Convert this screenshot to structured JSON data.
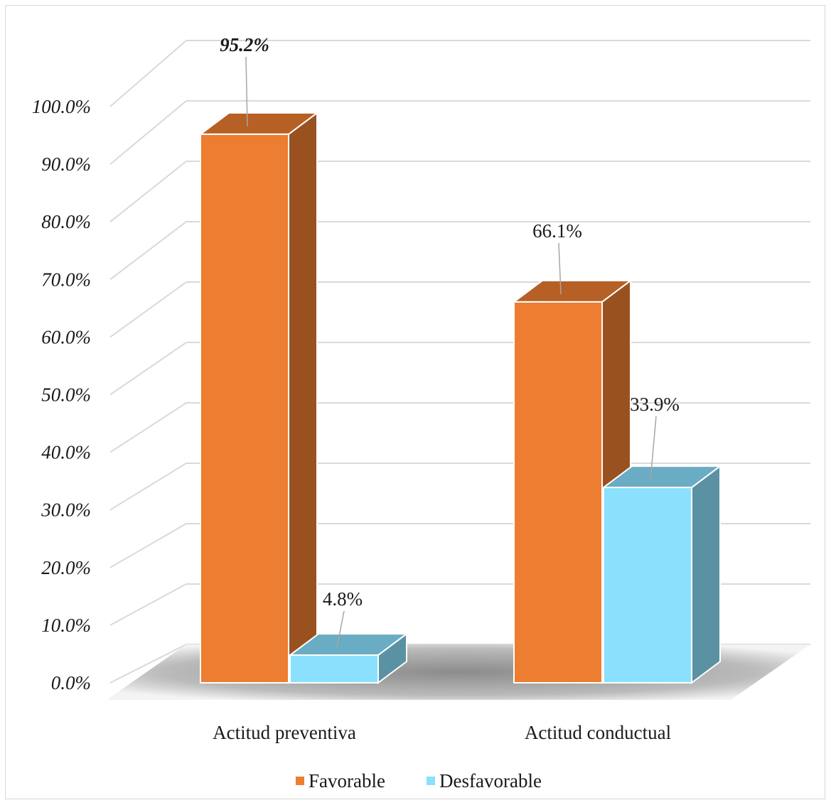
{
  "chart_data": {
    "type": "bar",
    "categories": [
      "Actitud preventiva",
      "Actitud conductual"
    ],
    "series": [
      {
        "name": "Favorable",
        "values": [
          95.2,
          66.1
        ],
        "labels": [
          "95.2%",
          "66.1%"
        ],
        "color": "#ed7d31"
      },
      {
        "name": "Desfavorable",
        "values": [
          4.8,
          33.9
        ],
        "labels": [
          "4.8%",
          "33.9%"
        ],
        "color": "#8ae0fd"
      }
    ],
    "ylim": [
      0,
      100
    ],
    "yticks": [
      "0.0%",
      "10.0%",
      "20.0%",
      "30.0%",
      "40.0%",
      "50.0%",
      "60.0%",
      "70.0%",
      "80.0%",
      "90.0%",
      "100.0%"
    ],
    "grid": true,
    "legend_position": "bottom",
    "style": "3d-clustered-column"
  }
}
